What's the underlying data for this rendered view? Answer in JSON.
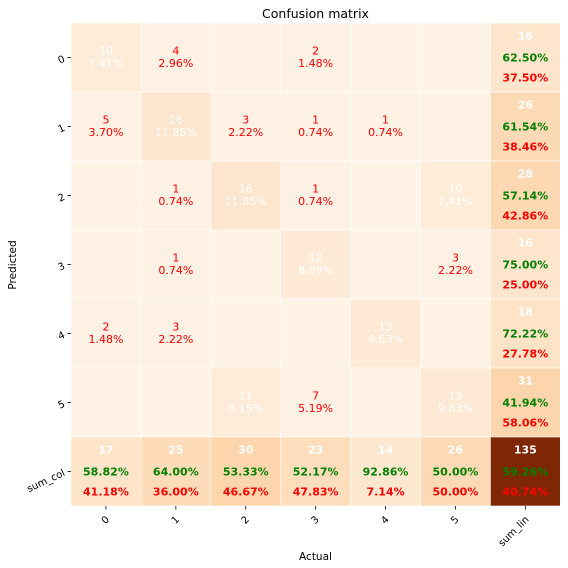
{
  "chart_data": {
    "type": "heatmap",
    "title": "Confusion matrix",
    "xlabel": "Actual",
    "ylabel": "Predicted",
    "x_tick_labels": [
      "0",
      "1",
      "2",
      "3",
      "4",
      "5",
      "sum_lin"
    ],
    "y_tick_labels": [
      "0",
      "1",
      "2",
      "3",
      "4",
      "5",
      "sum_col"
    ],
    "colormap": "Oranges",
    "colors": {
      "count_text": "#ff0000",
      "light_text": "#ffffff",
      "correct_text": "#008000",
      "error_text": "#ff0000",
      "total_cell": "#7f2704"
    },
    "matrix": [
      [
        {
          "count": "10",
          "pct": "7.41%"
        },
        {
          "count": "4",
          "pct": "2.96%"
        },
        {
          "count": "",
          "pct": ""
        },
        {
          "count": "2",
          "pct": "1.48%"
        },
        {
          "count": "",
          "pct": ""
        },
        {
          "count": "",
          "pct": ""
        }
      ],
      [
        {
          "count": "5",
          "pct": "3.70%"
        },
        {
          "count": "16",
          "pct": "11.85%"
        },
        {
          "count": "3",
          "pct": "2.22%"
        },
        {
          "count": "1",
          "pct": "0.74%"
        },
        {
          "count": "1",
          "pct": "0.74%"
        },
        {
          "count": "",
          "pct": ""
        }
      ],
      [
        {
          "count": "",
          "pct": ""
        },
        {
          "count": "1",
          "pct": "0.74%"
        },
        {
          "count": "16",
          "pct": "11.85%"
        },
        {
          "count": "1",
          "pct": "0.74%"
        },
        {
          "count": "",
          "pct": ""
        },
        {
          "count": "10",
          "pct": "7.41%"
        }
      ],
      [
        {
          "count": "",
          "pct": ""
        },
        {
          "count": "1",
          "pct": "0.74%"
        },
        {
          "count": "",
          "pct": ""
        },
        {
          "count": "12",
          "pct": "8.89%"
        },
        {
          "count": "",
          "pct": ""
        },
        {
          "count": "3",
          "pct": "2.22%"
        }
      ],
      [
        {
          "count": "2",
          "pct": "1.48%"
        },
        {
          "count": "3",
          "pct": "2.22%"
        },
        {
          "count": "",
          "pct": ""
        },
        {
          "count": "",
          "pct": ""
        },
        {
          "count": "13",
          "pct": "9.63%"
        },
        {
          "count": "",
          "pct": ""
        }
      ],
      [
        {
          "count": "",
          "pct": ""
        },
        {
          "count": "",
          "pct": ""
        },
        {
          "count": "11",
          "pct": "8.15%"
        },
        {
          "count": "7",
          "pct": "5.19%"
        },
        {
          "count": "",
          "pct": ""
        },
        {
          "count": "13",
          "pct": "9.63%"
        }
      ]
    ],
    "row_sums": [
      {
        "total": "16",
        "correct": "62.50%",
        "error": "37.50%"
      },
      {
        "total": "26",
        "correct": "61.54%",
        "error": "38.46%"
      },
      {
        "total": "28",
        "correct": "57.14%",
        "error": "42.86%"
      },
      {
        "total": "16",
        "correct": "75.00%",
        "error": "25.00%"
      },
      {
        "total": "18",
        "correct": "72.22%",
        "error": "27.78%"
      },
      {
        "total": "31",
        "correct": "41.94%",
        "error": "58.06%"
      }
    ],
    "col_sums": [
      {
        "total": "17",
        "correct": "58.82%",
        "error": "41.18%"
      },
      {
        "total": "25",
        "correct": "64.00%",
        "error": "36.00%"
      },
      {
        "total": "30",
        "correct": "53.33%",
        "error": "46.67%"
      },
      {
        "total": "23",
        "correct": "52.17%",
        "error": "47.83%"
      },
      {
        "total": "14",
        "correct": "92.86%",
        "error": "7.14%"
      },
      {
        "total": "26",
        "correct": "50.00%",
        "error": "50.00%"
      }
    ],
    "grand_total": {
      "total": "135",
      "correct": "59.26%",
      "error": "40.74%"
    }
  }
}
